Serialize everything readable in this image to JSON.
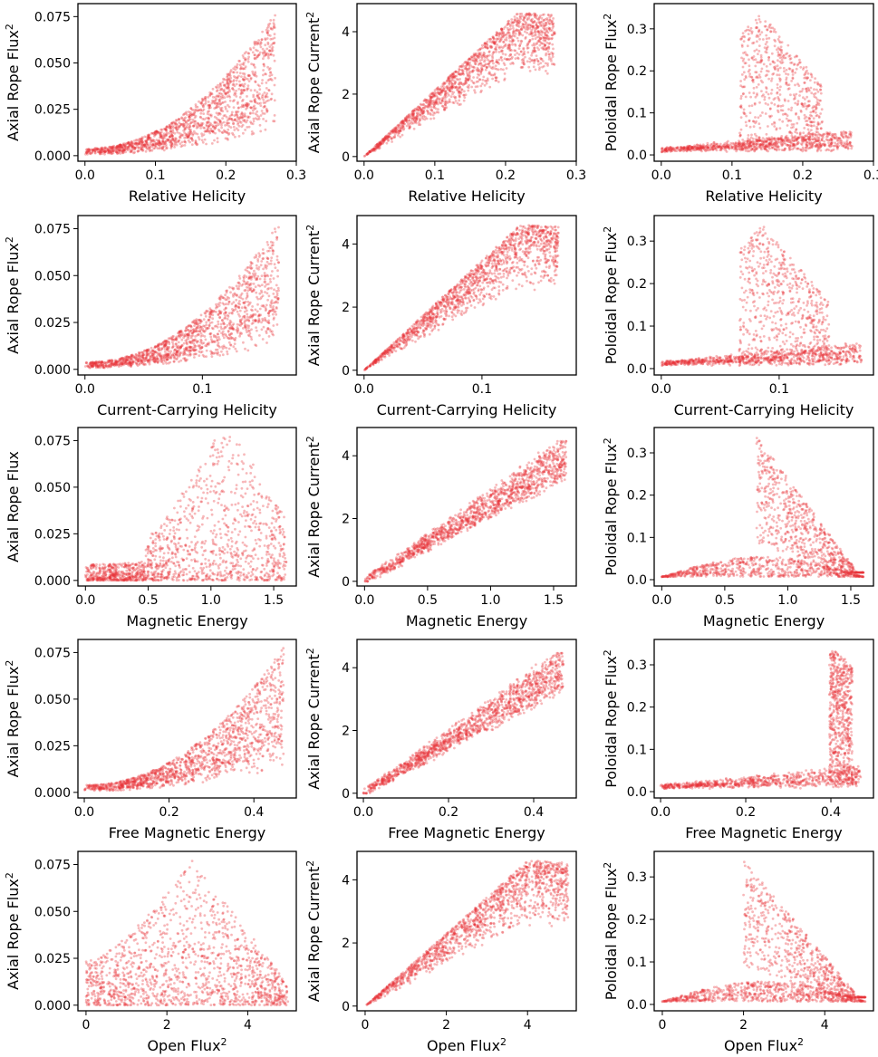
{
  "figure": {
    "rows": 5,
    "cols": 3,
    "point_color": "#e8353a"
  },
  "chart_data": [
    {
      "type": "scatter",
      "xlabel": "Relative Helicity",
      "ylabel": "Axial Rope Flux",
      "ylabel_sup": "2",
      "xlim": [
        -0.01,
        0.3
      ],
      "ylim": [
        -0.003,
        0.082
      ],
      "xticks": [
        0.0,
        0.1,
        0.2,
        0.3
      ],
      "xtick_labels": [
        "0.0",
        "0.1",
        "0.2",
        "0.3"
      ],
      "yticks": [
        0,
        0.025,
        0.05,
        0.075
      ],
      "ytick_labels": [
        "0.000",
        "0.025",
        "0.050",
        "0.075"
      ],
      "xmax": 0.27,
      "ymax": 0.078,
      "shape": "rise_late"
    },
    {
      "type": "scatter",
      "xlabel": "Relative Helicity",
      "ylabel": "Axial Rope Current",
      "ylabel_sup": "2",
      "xlim": [
        -0.01,
        0.3
      ],
      "ylim": [
        -0.15,
        4.9
      ],
      "xticks": [
        0.0,
        0.1,
        0.2,
        0.3
      ],
      "xtick_labels": [
        "0.0",
        "0.1",
        "0.2",
        "0.3"
      ],
      "yticks": [
        0,
        2,
        4
      ],
      "ytick_labels": [
        "0",
        "2",
        "4"
      ],
      "xmax": 0.27,
      "ymax": 4.6,
      "shape": "rise_saturate"
    },
    {
      "type": "scatter",
      "xlabel": "Relative Helicity",
      "ylabel": "Poloidal Rope Flux",
      "ylabel_sup": "2",
      "xlim": [
        -0.01,
        0.3
      ],
      "ylim": [
        -0.015,
        0.36
      ],
      "xticks": [
        0.0,
        0.1,
        0.2,
        0.3
      ],
      "xtick_labels": [
        "0.0",
        "0.1",
        "0.2",
        "0.3"
      ],
      "yticks": [
        0,
        0.1,
        0.2,
        0.3
      ],
      "ytick_labels": [
        "0.0",
        "0.1",
        "0.2",
        "0.3"
      ],
      "xmax": 0.27,
      "ymax": 0.34,
      "shape": "low_band_peak",
      "peak_x": 0.14
    },
    {
      "type": "scatter",
      "xlabel": "Current-Carrying Helicity",
      "ylabel": "Axial Rope Flux",
      "ylabel_sup": "2",
      "xlim": [
        -0.006,
        0.18
      ],
      "ylim": [
        -0.003,
        0.082
      ],
      "xticks": [
        0.0,
        0.1
      ],
      "xtick_labels": [
        "0.0",
        "0.1"
      ],
      "yticks": [
        0,
        0.025,
        0.05,
        0.075
      ],
      "ytick_labels": [
        "0.000",
        "0.025",
        "0.050",
        "0.075"
      ],
      "xmax": 0.165,
      "ymax": 0.078,
      "shape": "rise_late"
    },
    {
      "type": "scatter",
      "xlabel": "Current-Carrying Helicity",
      "ylabel": "Axial Rope Current",
      "ylabel_sup": "2",
      "xlim": [
        -0.006,
        0.18
      ],
      "ylim": [
        -0.15,
        4.9
      ],
      "xticks": [
        0.0,
        0.1
      ],
      "xtick_labels": [
        "0.0",
        "0.1"
      ],
      "yticks": [
        0,
        2,
        4
      ],
      "ytick_labels": [
        "0",
        "2",
        "4"
      ],
      "xmax": 0.165,
      "ymax": 4.6,
      "shape": "rise_saturate"
    },
    {
      "type": "scatter",
      "xlabel": "Current-Carrying Helicity",
      "ylabel": "Poloidal Rope Flux",
      "ylabel_sup": "2",
      "xlim": [
        -0.006,
        0.18
      ],
      "ylim": [
        -0.015,
        0.36
      ],
      "xticks": [
        0.0,
        0.1
      ],
      "xtick_labels": [
        "0.0",
        "0.1"
      ],
      "yticks": [
        0,
        0.1,
        0.2,
        0.3
      ],
      "ytick_labels": [
        "0.0",
        "0.1",
        "0.2",
        "0.3"
      ],
      "xmax": 0.17,
      "ymax": 0.34,
      "shape": "low_band_peak",
      "peak_x": 0.085
    },
    {
      "type": "scatter",
      "xlabel": "Magnetic Energy",
      "ylabel": "Axial Rope Flux",
      "ylabel_sup": "",
      "xlim": [
        -0.06,
        1.68
      ],
      "ylim": [
        -0.003,
        0.082
      ],
      "xticks": [
        0.0,
        0.5,
        1.0,
        1.5
      ],
      "xtick_labels": [
        "0.0",
        "0.5",
        "1.0",
        "1.5"
      ],
      "yticks": [
        0,
        0.025,
        0.05,
        0.075
      ],
      "ytick_labels": [
        "0.000",
        "0.025",
        "0.050",
        "0.075"
      ],
      "xmax": 1.6,
      "ymax": 0.078,
      "shape": "spiky"
    },
    {
      "type": "scatter",
      "xlabel": "Magnetic Energy",
      "ylabel": "Axial Rope Current",
      "ylabel_sup": "2",
      "xlim": [
        -0.06,
        1.68
      ],
      "ylim": [
        -0.15,
        4.9
      ],
      "xticks": [
        0.0,
        0.5,
        1.0,
        1.5
      ],
      "xtick_labels": [
        "0.0",
        "0.5",
        "1.0",
        "1.5"
      ],
      "yticks": [
        0,
        2,
        4
      ],
      "ytick_labels": [
        "0",
        "2",
        "4"
      ],
      "xmax": 1.6,
      "ymax": 4.6,
      "shape": "linear"
    },
    {
      "type": "scatter",
      "xlabel": "Magnetic Energy",
      "ylabel": "Poloidal Rope Flux",
      "ylabel_sup": "2",
      "xlim": [
        -0.06,
        1.68
      ],
      "ylim": [
        -0.015,
        0.36
      ],
      "xticks": [
        0.0,
        0.5,
        1.0,
        1.5
      ],
      "xtick_labels": [
        "0.0",
        "0.5",
        "1.0",
        "1.5"
      ],
      "yticks": [
        0,
        0.1,
        0.2,
        0.3
      ],
      "ytick_labels": [
        "0.0",
        "0.1",
        "0.2",
        "0.3"
      ],
      "xmax": 1.6,
      "ymax": 0.34,
      "shape": "low_band_diag",
      "peak_x": 0.75
    },
    {
      "type": "scatter",
      "xlabel": "Free Magnetic Energy",
      "ylabel": "Axial Rope Flux",
      "ylabel_sup": "2",
      "xlim": [
        -0.015,
        0.5
      ],
      "ylim": [
        -0.003,
        0.082
      ],
      "xticks": [
        0.0,
        0.2,
        0.4
      ],
      "xtick_labels": [
        "0.0",
        "0.2",
        "0.4"
      ],
      "yticks": [
        0,
        0.025,
        0.05,
        0.075
      ],
      "ytick_labels": [
        "0.000",
        "0.025",
        "0.050",
        "0.075"
      ],
      "xmax": 0.47,
      "ymax": 0.078,
      "shape": "rise_late"
    },
    {
      "type": "scatter",
      "xlabel": "Free Magnetic Energy",
      "ylabel": "Axial Rope Current",
      "ylabel_sup": "2",
      "xlim": [
        -0.015,
        0.5
      ],
      "ylim": [
        -0.15,
        4.9
      ],
      "xticks": [
        0.0,
        0.2,
        0.4
      ],
      "xtick_labels": [
        "0.0",
        "0.2",
        "0.4"
      ],
      "yticks": [
        0,
        2,
        4
      ],
      "ytick_labels": [
        "0",
        "2",
        "4"
      ],
      "xmax": 0.47,
      "ymax": 4.6,
      "shape": "linear"
    },
    {
      "type": "scatter",
      "xlabel": "Free Magnetic Energy",
      "ylabel": "Poloidal Rope Flux",
      "ylabel_sup": "2",
      "xlim": [
        -0.015,
        0.5
      ],
      "ylim": [
        -0.015,
        0.36
      ],
      "xticks": [
        0.0,
        0.2,
        0.4
      ],
      "xtick_labels": [
        "0.0",
        "0.2",
        "0.4"
      ],
      "yticks": [
        0,
        0.1,
        0.2,
        0.3
      ],
      "ytick_labels": [
        "0.0",
        "0.1",
        "0.2",
        "0.3"
      ],
      "xmax": 0.47,
      "ymax": 0.34,
      "shape": "low_band_peak",
      "peak_x": 0.41
    },
    {
      "type": "scatter",
      "xlabel": "Open Flux",
      "xlabel_sup": "2",
      "ylabel": "Axial Rope Flux",
      "ylabel_sup": "2",
      "xlim": [
        -0.2,
        5.2
      ],
      "ylim": [
        -0.003,
        0.082
      ],
      "xticks": [
        0,
        2,
        4
      ],
      "xtick_labels": [
        "0",
        "2",
        "4"
      ],
      "yticks": [
        0,
        0.025,
        0.05,
        0.075
      ],
      "ytick_labels": [
        "0.000",
        "0.025",
        "0.050",
        "0.075"
      ],
      "xmax": 5.0,
      "ymax": 0.078,
      "shape": "hump",
      "peak_x": 2.6
    },
    {
      "type": "scatter",
      "xlabel": "Open Flux",
      "xlabel_sup": "2",
      "ylabel": "Axial Rope Current",
      "ylabel_sup": "2",
      "xlim": [
        -0.2,
        5.2
      ],
      "ylim": [
        -0.15,
        4.9
      ],
      "xticks": [
        0,
        2,
        4
      ],
      "xtick_labels": [
        "0",
        "2",
        "4"
      ],
      "yticks": [
        0,
        2,
        4
      ],
      "ytick_labels": [
        "0",
        "2",
        "4"
      ],
      "xmax": 5.0,
      "ymax": 4.6,
      "shape": "rise_saturate"
    },
    {
      "type": "scatter",
      "xlabel": "Open Flux",
      "xlabel_sup": "2",
      "ylabel": "Poloidal Rope Flux",
      "ylabel_sup": "2",
      "xlim": [
        -0.2,
        5.2
      ],
      "ylim": [
        -0.015,
        0.36
      ],
      "xticks": [
        0,
        2,
        4
      ],
      "xtick_labels": [
        "0",
        "2",
        "4"
      ],
      "yticks": [
        0,
        0.1,
        0.2,
        0.3
      ],
      "ytick_labels": [
        "0.0",
        "0.1",
        "0.2",
        "0.3"
      ],
      "xmax": 5.0,
      "ymax": 0.34,
      "shape": "low_band_diag",
      "peak_x": 2.0
    }
  ]
}
